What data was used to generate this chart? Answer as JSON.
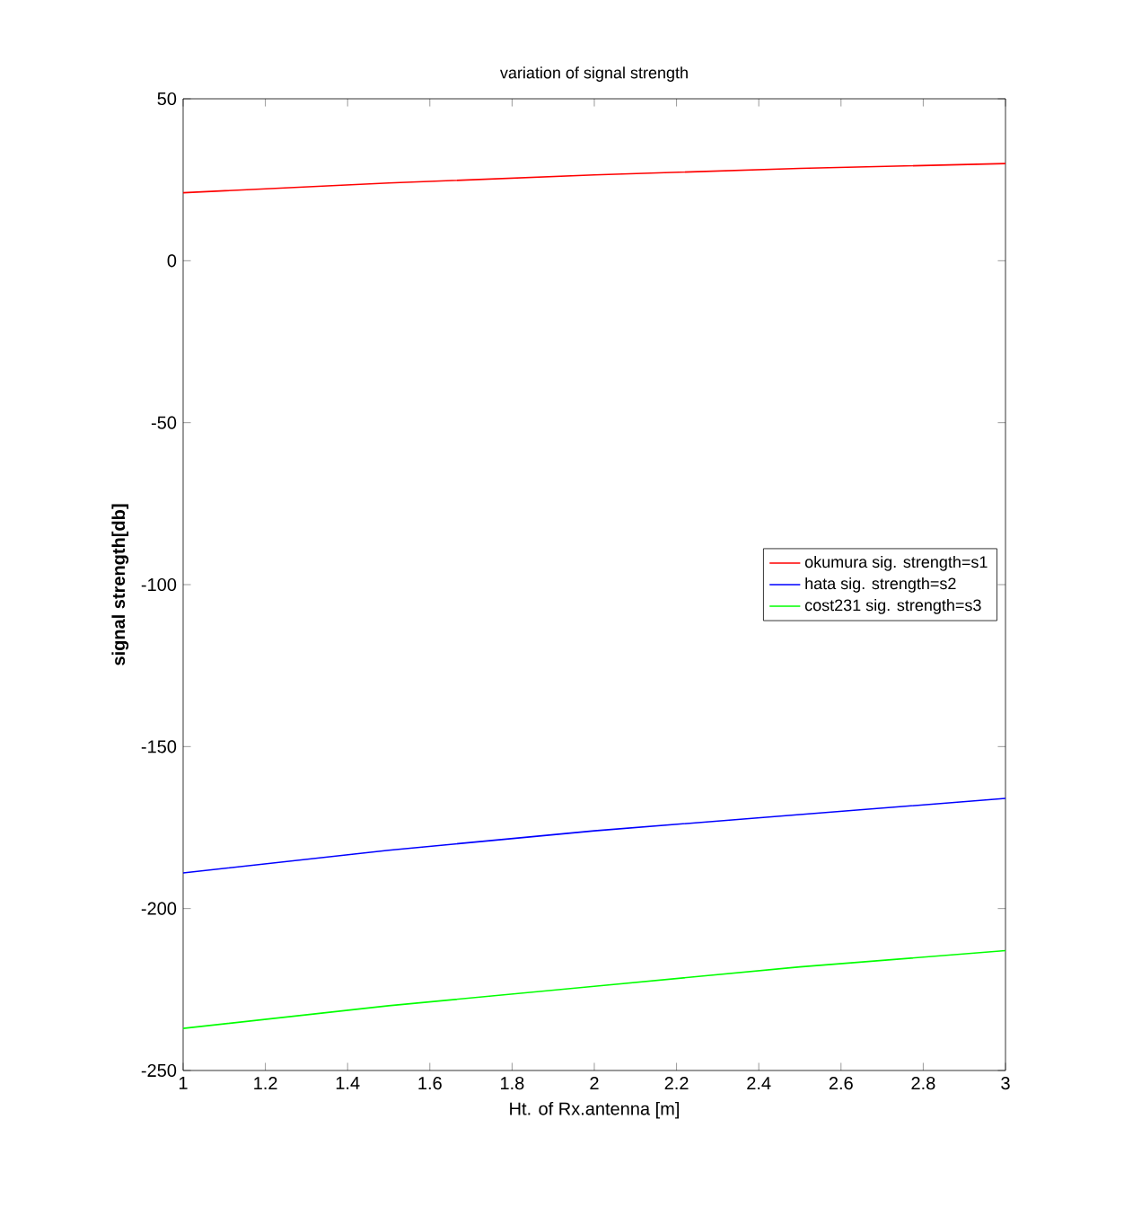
{
  "chart_data": {
    "type": "line",
    "title": "variation of signal strength",
    "xlabel": "Ht. of Rx.antenna [m]",
    "ylabel": "signal strength[db]",
    "x": [
      1,
      1.5,
      2,
      2.5,
      3
    ],
    "series": [
      {
        "name": "okumura sig. strength=s1",
        "color": "#ff0000",
        "values": [
          21,
          24,
          26.5,
          28.5,
          30
        ]
      },
      {
        "name": "hata sig. strength=s2",
        "color": "#0000ff",
        "values": [
          -189,
          -182,
          -176,
          -171,
          -166
        ]
      },
      {
        "name": "cost231 sig. strength=s3",
        "color": "#00ff00",
        "values": [
          -237,
          -230,
          -224,
          -218,
          -213
        ]
      }
    ],
    "xlim": [
      1,
      3
    ],
    "ylim": [
      -250,
      50
    ],
    "xticks": [
      1,
      1.2,
      1.4,
      1.6,
      1.8,
      2,
      2.2,
      2.4,
      2.6,
      2.8,
      3
    ],
    "yticks": [
      -250,
      -200,
      -150,
      -100,
      -50,
      0,
      50
    ],
    "legend": "right",
    "grid": false,
    "marker": "none",
    "line_style": "solid"
  }
}
